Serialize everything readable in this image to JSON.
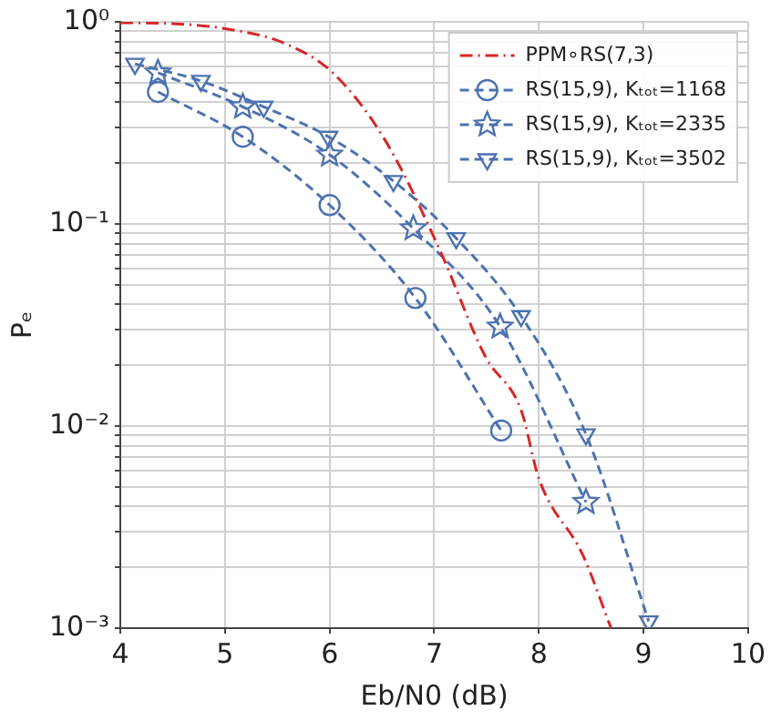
{
  "chart_data": {
    "type": "line",
    "xlabel": "Eb/N0 (dB)",
    "ylabel": "Pₑ",
    "log": "y",
    "grid": true,
    "legend": "top right",
    "xlim": [
      4,
      10
    ],
    "xticks": [
      4,
      5,
      6,
      7,
      8,
      9,
      10
    ],
    "ylim": [
      0.001,
      1
    ],
    "yticks": [
      {
        "value": 0.001,
        "label": "10⁻³"
      },
      {
        "value": 0.002,
        "label": null
      },
      {
        "value": 0.003,
        "label": null
      },
      {
        "value": 0.004,
        "label": null
      },
      {
        "value": 0.005,
        "label": null
      },
      {
        "value": 0.006,
        "label": null
      },
      {
        "value": 0.007,
        "label": null
      },
      {
        "value": 0.008,
        "label": null
      },
      {
        "value": 0.009,
        "label": null
      },
      {
        "value": 0.01,
        "label": "10⁻²"
      },
      {
        "value": 0.02,
        "label": null
      },
      {
        "value": 0.03,
        "label": null
      },
      {
        "value": 0.04,
        "label": null
      },
      {
        "value": 0.05,
        "label": null
      },
      {
        "value": 0.06,
        "label": null
      },
      {
        "value": 0.07,
        "label": null
      },
      {
        "value": 0.08,
        "label": null
      },
      {
        "value": 0.09,
        "label": null
      },
      {
        "value": 0.1,
        "label": "10⁻¹"
      },
      {
        "value": 0.2,
        "label": null
      },
      {
        "value": 0.3,
        "label": null
      },
      {
        "value": 0.4,
        "label": null
      },
      {
        "value": 0.5,
        "label": null
      },
      {
        "value": 0.6,
        "label": null
      },
      {
        "value": 0.7,
        "label": null
      },
      {
        "value": 0.8,
        "label": null
      },
      {
        "value": 0.9,
        "label": null
      },
      {
        "value": 1,
        "label": "10⁰"
      }
    ],
    "series": [
      {
        "name": "PPM∘RS(7,3)",
        "color": "#d62728",
        "line_style": "dashdot",
        "marker": "none",
        "x": [
          4,
          4.5,
          5.03,
          5.55,
          6.03,
          6.53,
          7.04,
          7.49,
          7.83,
          8.0,
          8.42,
          8.69
        ],
        "values": [
          0.99,
          0.98,
          0.92,
          0.79,
          0.56,
          0.26,
          0.077,
          0.022,
          0.012,
          0.0055,
          0.0023,
          0.001
        ]
      },
      {
        "name": "RS(15,9), Kₜₒₜ=1168",
        "color": "#4c72b0",
        "line_style": "dashed",
        "marker": "circle",
        "x": [
          4.36,
          5.17,
          6.0,
          6.82,
          7.64
        ],
        "values": [
          0.45,
          0.27,
          0.124,
          0.043,
          0.0095
        ]
      },
      {
        "name": "RS(15,9), Kₜₒₜ=2335",
        "color": "#4c72b0",
        "line_style": "dashed",
        "marker": "star",
        "x": [
          4.36,
          5.17,
          6.0,
          6.8,
          7.63,
          8.45
        ],
        "values": [
          0.56,
          0.38,
          0.22,
          0.095,
          0.031,
          0.0042
        ]
      },
      {
        "name": "RS(15,9), Kₜₒₜ=3502",
        "color": "#4c72b0",
        "line_style": "dashed",
        "marker": "triangle",
        "x": [
          4.14,
          4.77,
          5.37,
          5.99,
          6.61,
          7.21,
          7.83,
          8.45,
          9.05
        ],
        "values": [
          0.62,
          0.51,
          0.38,
          0.27,
          0.163,
          0.085,
          0.035,
          0.0091,
          0.00108
        ]
      }
    ]
  }
}
